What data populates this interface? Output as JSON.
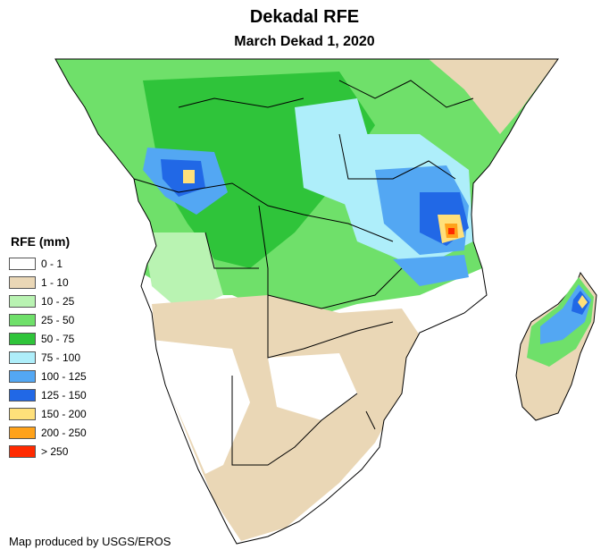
{
  "title": "Dekadal RFE",
  "subtitle": "March Dekad 1, 2020",
  "credit": "Map produced by USGS/EROS",
  "legend": {
    "title": "RFE (mm)",
    "items": [
      {
        "label": "0 - 1",
        "color": "#ffffff"
      },
      {
        "label": "1 - 10",
        "color": "#ead7b6"
      },
      {
        "label": "10 - 25",
        "color": "#b9f3b2"
      },
      {
        "label": "25 - 50",
        "color": "#6fe06a"
      },
      {
        "label": "50 - 75",
        "color": "#2fc43a"
      },
      {
        "label": "75 - 100",
        "color": "#aeeefa"
      },
      {
        "label": "100 - 125",
        "color": "#53a7f3"
      },
      {
        "label": "125 - 150",
        "color": "#2168e6"
      },
      {
        "label": "150 - 200",
        "color": "#ffe07a"
      },
      {
        "label": "200 - 250",
        "color": "#ffa21a"
      },
      {
        "label": "> 250",
        "color": "#ff2a00"
      }
    ]
  }
}
